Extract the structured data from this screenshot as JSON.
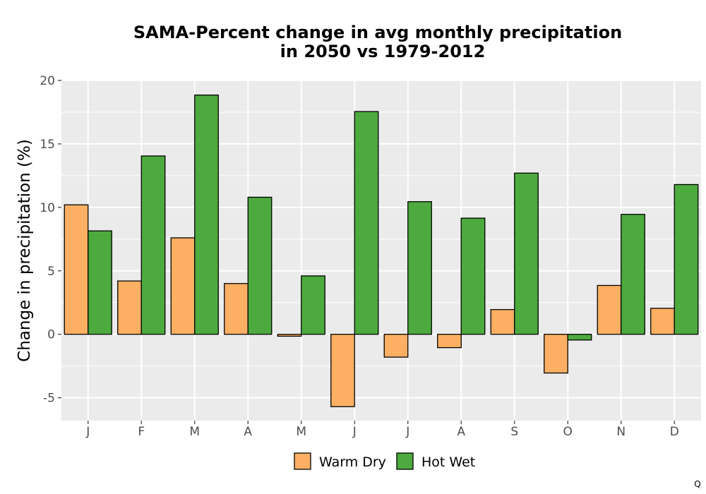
{
  "corner_mark": "Q",
  "chart_data": {
    "type": "bar",
    "title": [
      "SAMA-Percent change in avg monthly precipitation",
      "in 2050 vs 1979-2012"
    ],
    "xlabel": "",
    "ylabel": "Change in precipitation (%)",
    "ylim": [
      -6.8,
      20.0
    ],
    "yticks": [
      -5,
      0,
      5,
      10,
      15,
      20
    ],
    "ytick_labels": [
      "-5",
      "0",
      "5",
      "10",
      "15",
      "20"
    ],
    "grid": true,
    "legend_position": "bottom",
    "categories": [
      "J",
      "F",
      "M",
      "A",
      "M",
      "J",
      "J",
      "A",
      "S",
      "O",
      "N",
      "D"
    ],
    "series": [
      {
        "name": "Warm Dry",
        "color": "#FDAF63",
        "values": [
          10.2,
          4.2,
          7.6,
          4.0,
          -0.15,
          -5.7,
          -1.8,
          -1.05,
          1.95,
          -3.05,
          3.85,
          2.05
        ]
      },
      {
        "name": "Hot Wet",
        "color": "#4DAA3E",
        "values": [
          8.15,
          14.05,
          18.85,
          10.8,
          4.6,
          17.55,
          10.45,
          9.15,
          12.7,
          -0.45,
          9.45,
          11.8
        ]
      }
    ],
    "colors": {
      "panel": "#EBEBEB",
      "grid": "#FFFFFF",
      "bar_border": "#000000"
    }
  }
}
